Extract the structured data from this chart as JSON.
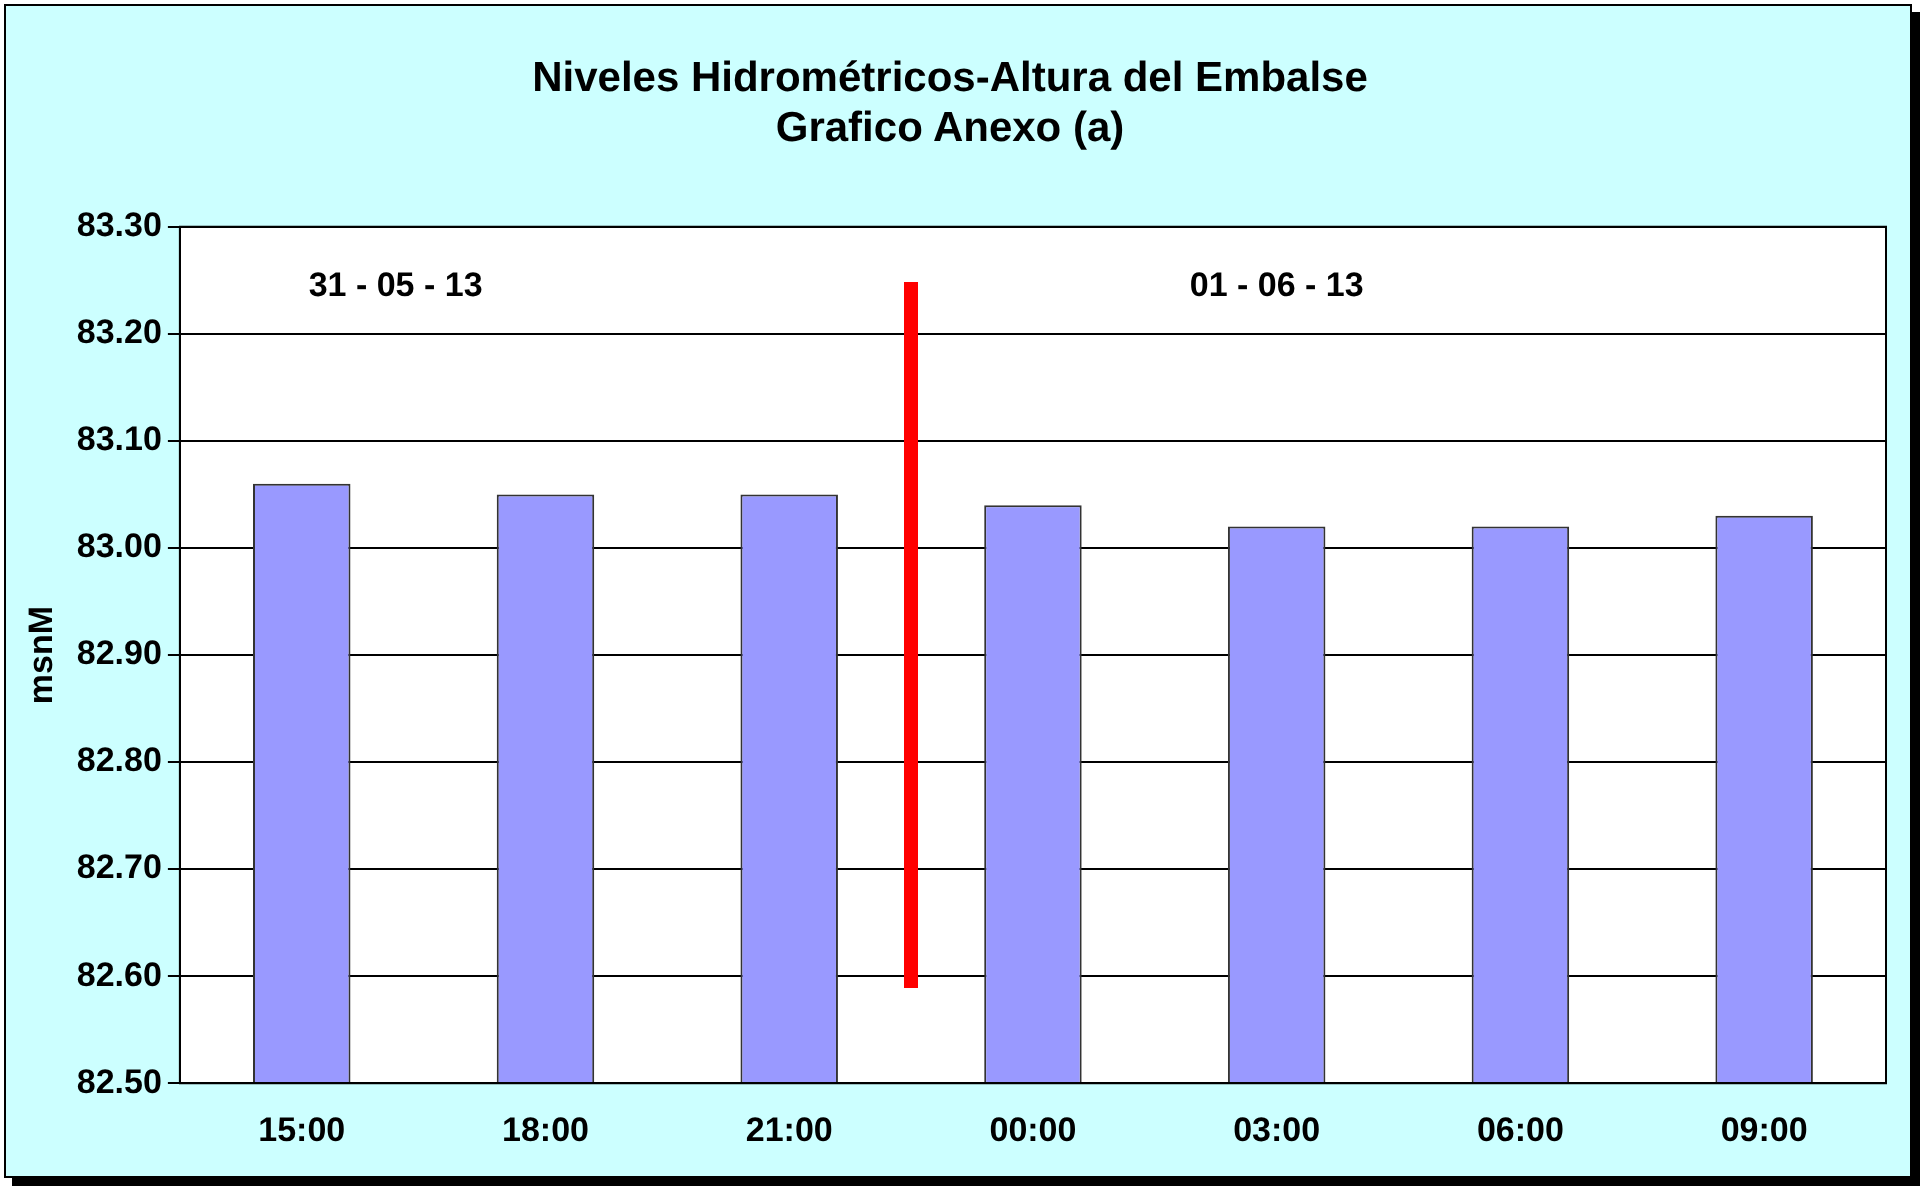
{
  "chart_data": {
    "type": "bar",
    "title": [
      "Niveles Hidrométricos-Altura del Embalse",
      "Grafico Anexo (a)"
    ],
    "ylabel": "msnM",
    "categories": [
      "15:00",
      "18:00",
      "21:00",
      "00:00",
      "03:00",
      "06:00",
      "09:00"
    ],
    "values": [
      83.06,
      83.05,
      83.05,
      83.04,
      83.02,
      83.02,
      83.03
    ],
    "color": "#9999ff",
    "ylim": [
      82.5,
      83.3
    ],
    "yticks": [
      {
        "value": 82.5,
        "label": "82.50"
      },
      {
        "value": 82.6,
        "label": "82.60"
      },
      {
        "value": 82.7,
        "label": "82.70"
      },
      {
        "value": 82.8,
        "label": "82.80"
      },
      {
        "value": 82.9,
        "label": "82.90"
      },
      {
        "value": 83.0,
        "label": "83.00"
      },
      {
        "value": 83.1,
        "label": "83.10"
      },
      {
        "value": 83.2,
        "label": "83.20"
      },
      {
        "value": 83.3,
        "label": "83.30"
      }
    ],
    "grid": "y",
    "legend": false,
    "annotations": [
      "31 - 05 - 13",
      "01 - 06 - 13"
    ]
  }
}
